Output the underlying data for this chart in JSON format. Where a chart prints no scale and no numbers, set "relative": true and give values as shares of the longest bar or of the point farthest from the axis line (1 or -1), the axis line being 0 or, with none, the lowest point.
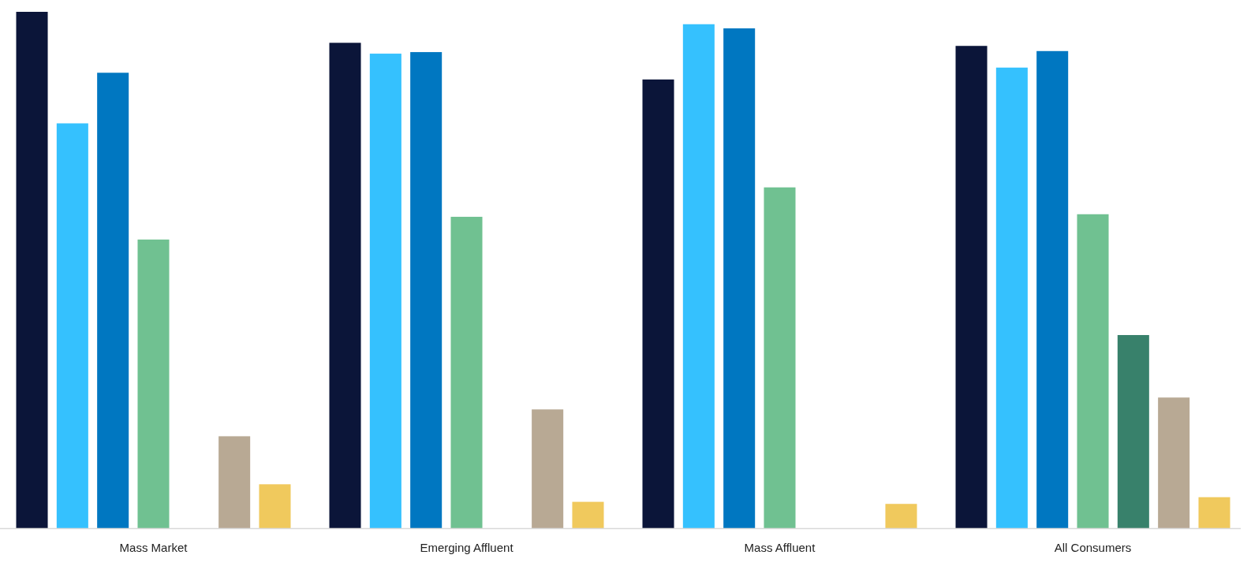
{
  "chart_data": {
    "type": "bar",
    "relative": true,
    "categories": [
      "Mass Market",
      "Emerging Affluent",
      "Mass Affluent",
      "All Consumers"
    ],
    "series": [
      {
        "color": "#0b1539",
        "values": [
          1,
          0.94,
          0.869,
          0.934
        ]
      },
      {
        "color": "#35c1fe",
        "values": [
          0.784,
          0.919,
          0.976,
          0.892
        ]
      },
      {
        "color": "#0077c1",
        "values": [
          0.882,
          0.922,
          0.968,
          0.924
        ]
      },
      {
        "color": "#70c191",
        "values": [
          0.559,
          0.603,
          0.66,
          0.608
        ]
      },
      {
        "color": "#38816b",
        "values": [
          null,
          null,
          null,
          0.374
        ]
      },
      {
        "color": "#b8a994",
        "values": [
          0.178,
          0.23,
          null,
          0.253
        ]
      },
      {
        "color": "#f0c95d",
        "values": [
          0.085,
          0.051,
          0.047,
          0.06
        ]
      }
    ]
  }
}
